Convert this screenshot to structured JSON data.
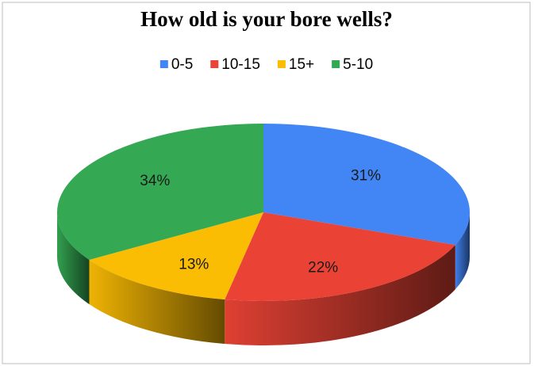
{
  "chart_data": {
    "type": "pie",
    "title": "How old is your bore wells?",
    "categories": [
      "0-5",
      "10-15",
      "15+",
      "5-10"
    ],
    "values": [
      31,
      22,
      13,
      34
    ],
    "value_labels": [
      "31%",
      "22%",
      "13%",
      "34%"
    ],
    "colors": [
      "#4285f4",
      "#ea4335",
      "#fbbc04",
      "#34a853"
    ],
    "legend": "top"
  }
}
